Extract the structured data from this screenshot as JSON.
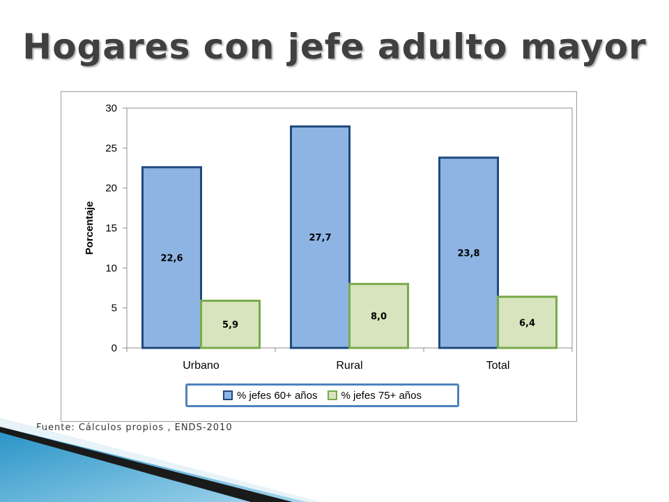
{
  "slide": {
    "title": "Hogares con jefe adulto mayor",
    "source": "Fuente: Cálculos propios , ENDS-2010"
  },
  "colors": {
    "series1_fill": "#8eb4e3",
    "series1_border": "#1f497d",
    "series2_fill": "#d7e4bd",
    "series2_border": "#77a94a",
    "legend_border": "#4f81bd",
    "decoration_blue": "#1f8fc4"
  },
  "chart_data": {
    "type": "bar",
    "categories": [
      "Urbano",
      "Rural",
      "Total"
    ],
    "series": [
      {
        "name": "% jefes 60+ años",
        "values": [
          22.6,
          27.7,
          23.8
        ],
        "labels": [
          "22,6",
          "27,7",
          "23,8"
        ]
      },
      {
        "name": "% jefes 75+ años",
        "values": [
          5.9,
          8.0,
          6.4
        ],
        "labels": [
          "5,9",
          "8,0",
          "6,4"
        ]
      }
    ],
    "ylabel": "Porcentaje",
    "xlabel": "",
    "ylim": [
      0,
      30
    ],
    "yticks": [
      0,
      5,
      10,
      15,
      20,
      25,
      30
    ],
    "grid": false,
    "legend_position": "bottom"
  }
}
